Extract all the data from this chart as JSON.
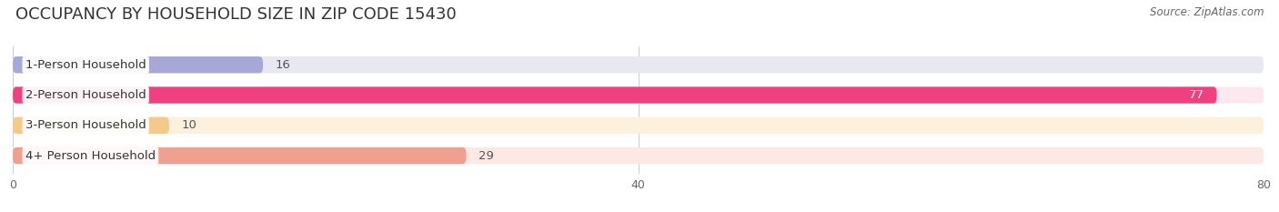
{
  "title": "OCCUPANCY BY HOUSEHOLD SIZE IN ZIP CODE 15430",
  "source": "Source: ZipAtlas.com",
  "categories": [
    "1-Person Household",
    "2-Person Household",
    "3-Person Household",
    "4+ Person Household"
  ],
  "values": [
    16,
    77,
    10,
    29
  ],
  "bar_colors": [
    "#a8a8d8",
    "#f04080",
    "#f5c98a",
    "#f0a090"
  ],
  "bar_bg_colors": [
    "#e8e8f2",
    "#fce8ee",
    "#fdf0dc",
    "#fce8e4"
  ],
  "xlim": [
    0,
    80
  ],
  "xticks": [
    0,
    40,
    80
  ],
  "background_color": "#ffffff",
  "title_fontsize": 13,
  "label_fontsize": 9.5,
  "value_fontsize": 9.5,
  "source_fontsize": 8.5
}
